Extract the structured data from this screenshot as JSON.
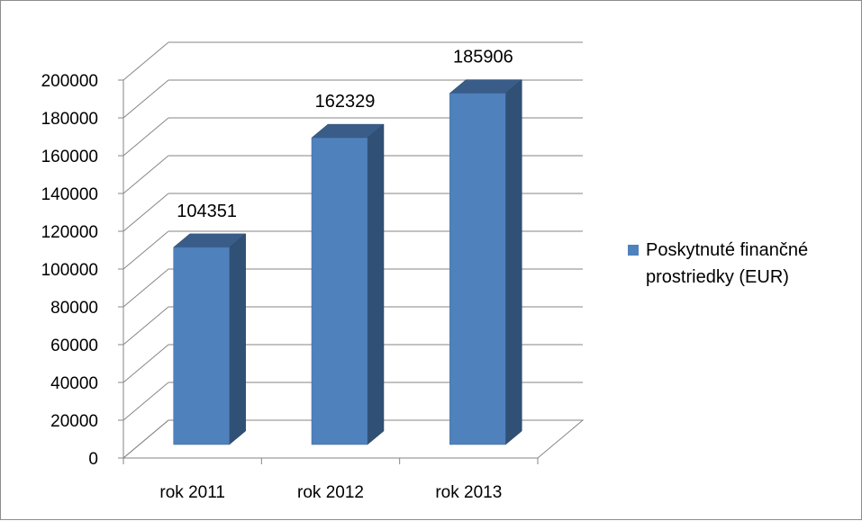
{
  "chart_data": {
    "type": "bar",
    "style": "3d-column",
    "categories": [
      "rok 2011",
      "rok 2012",
      "rok 2013"
    ],
    "series": [
      {
        "name": "Poskytnuté finančné prostriedky (EUR)",
        "values": [
          104351,
          162329,
          185906
        ],
        "color": "#4f81bd"
      }
    ],
    "data_labels": [
      "104351",
      "162329",
      "185906"
    ],
    "yticks": [
      "0",
      "20000",
      "40000",
      "60000",
      "80000",
      "100000",
      "120000",
      "140000",
      "160000",
      "180000",
      "200000"
    ],
    "ylim": [
      0,
      200000
    ],
    "grid": true,
    "legend": {
      "position": "right",
      "text": "Poskytnuté finančné prostriedky (EUR)",
      "color": "#4f81bd"
    }
  }
}
